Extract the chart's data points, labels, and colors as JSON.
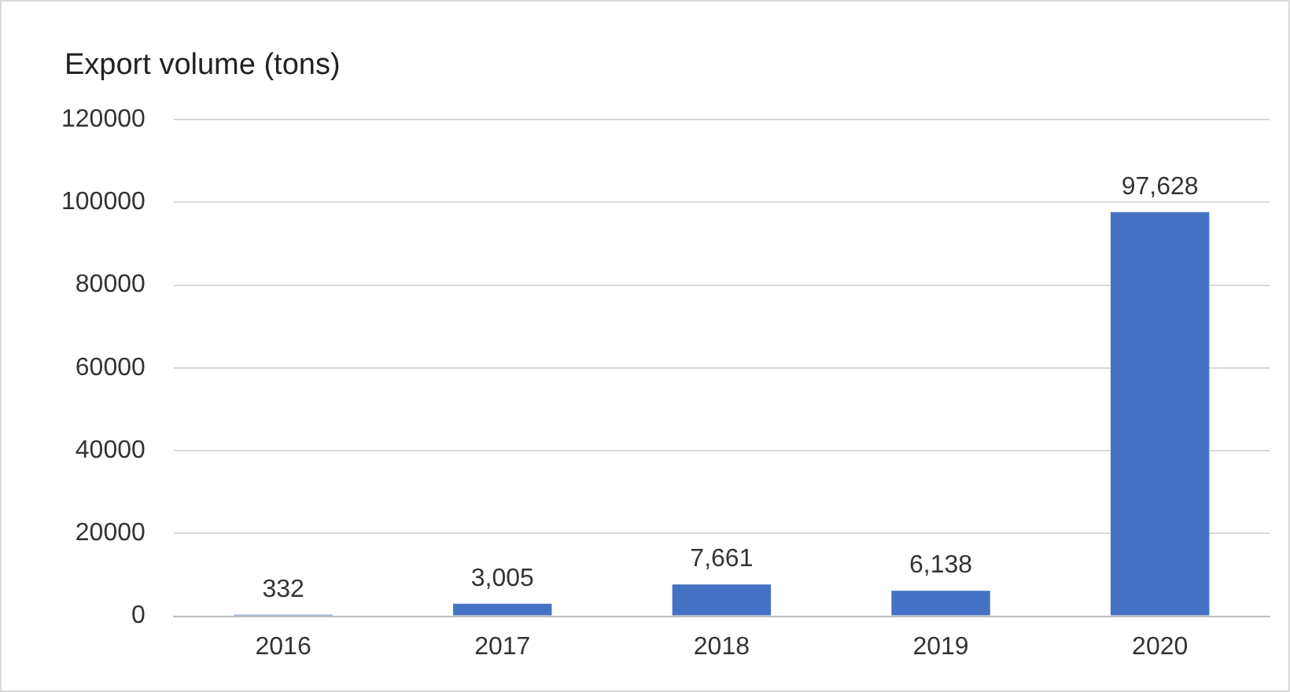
{
  "chart_data": {
    "type": "bar",
    "title": "Export volume (tons)",
    "categories": [
      "2016",
      "2017",
      "2018",
      "2019",
      "2020"
    ],
    "values": [
      332,
      3005,
      7661,
      6138,
      97628
    ],
    "value_labels": [
      "332",
      "3,005",
      "7,661",
      "6,138",
      "97,628"
    ],
    "color": "#4472c4",
    "ylim": [
      0,
      120000
    ],
    "yticks": [
      0,
      20000,
      40000,
      60000,
      80000,
      100000,
      120000
    ],
    "grid": "y",
    "legend": false
  }
}
